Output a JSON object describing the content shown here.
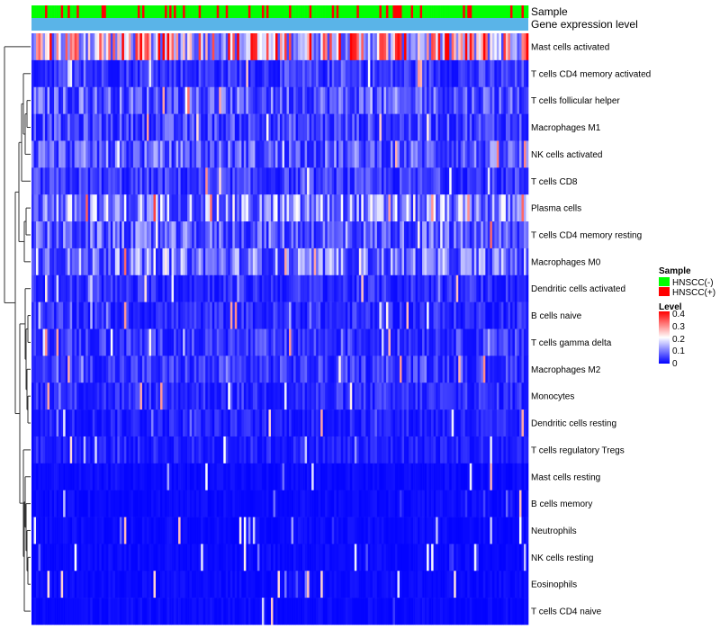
{
  "chart_data": {
    "type": "heatmap",
    "title": "",
    "n_samples": 220,
    "annotation_tracks": [
      "Sample",
      "Gene expression level"
    ],
    "rows": [
      {
        "label": "Mast cells activated",
        "level": 0.25
      },
      {
        "label": "T cells CD4 memory activated",
        "level": 0.05
      },
      {
        "label": "T cells follicular helper",
        "level": 0.08
      },
      {
        "label": "Macrophages M1",
        "level": 0.06
      },
      {
        "label": "NK cells activated",
        "level": 0.08
      },
      {
        "label": "T cells CD8",
        "level": 0.05
      },
      {
        "label": "Plasma cells",
        "level": 0.12
      },
      {
        "label": "T cells CD4 memory resting",
        "level": 0.08
      },
      {
        "label": "Macrophages M0",
        "level": 0.1
      },
      {
        "label": "Dendritic cells activated",
        "level": 0.04
      },
      {
        "label": "B cells naive",
        "level": 0.04
      },
      {
        "label": "T cells gamma delta",
        "level": 0.05
      },
      {
        "label": "Macrophages M2",
        "level": 0.05
      },
      {
        "label": "Monocytes",
        "level": 0.04
      },
      {
        "label": "Dendritic cells resting",
        "level": 0.03
      },
      {
        "label": "T cells regulatory  Tregs",
        "level": 0.03
      },
      {
        "label": "Mast cells resting",
        "level": 0.01
      },
      {
        "label": "B cells memory",
        "level": 0.01
      },
      {
        "label": "Neutrophils",
        "level": 0.01
      },
      {
        "label": "NK cells resting",
        "level": 0.01
      },
      {
        "label": "Eosinophils",
        "level": 0.01
      },
      {
        "label": "T cells CD4 naive",
        "level": 0.01
      }
    ],
    "sample_groups": [
      "HNSCC(-)",
      "HNSCC(+)"
    ],
    "sample_group_fraction_positive": 0.22,
    "color_scale": {
      "min": 0,
      "max": 0.4,
      "ticks": [
        0.4,
        0.3,
        0.2,
        0.1,
        0
      ]
    }
  },
  "legend": {
    "sample_title": "Sample",
    "sample_items": [
      {
        "label": "HNSCC(-)",
        "color": "#00ff00"
      },
      {
        "label": "HNSCC(+)",
        "color": "#ff0000"
      }
    ],
    "level_title": "Level",
    "level_labels": [
      "0.4",
      "0.3",
      "0.2",
      "0.1",
      "0"
    ],
    "level_colors": [
      "#0000ff",
      "#ffffff",
      "#ff0000"
    ]
  },
  "colors": {
    "expression_track": "#5ab4e8",
    "dendrogram": "#333333"
  }
}
